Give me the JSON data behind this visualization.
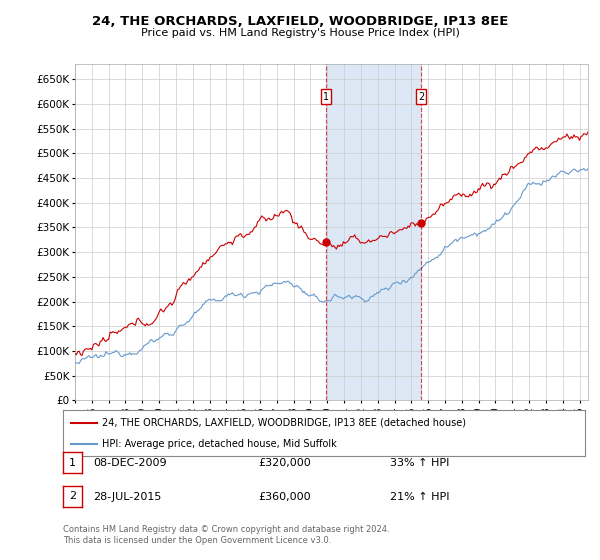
{
  "title": "24, THE ORCHARDS, LAXFIELD, WOODBRIDGE, IP13 8EE",
  "subtitle": "Price paid vs. HM Land Registry's House Price Index (HPI)",
  "ylabel_ticks": [
    "£0",
    "£50K",
    "£100K",
    "£150K",
    "£200K",
    "£250K",
    "£300K",
    "£350K",
    "£400K",
    "£450K",
    "£500K",
    "£550K",
    "£600K",
    "£650K"
  ],
  "ytick_vals": [
    0,
    50000,
    100000,
    150000,
    200000,
    250000,
    300000,
    350000,
    400000,
    450000,
    500000,
    550000,
    600000,
    650000
  ],
  "xlim_start": 1995.0,
  "xlim_end": 2025.5,
  "ylim_min": 0,
  "ylim_max": 680000,
  "red_line_color": "#cc0000",
  "blue_line_color": "#6699cc",
  "marker1_date": 2009.93,
  "marker2_date": 2015.57,
  "marker1_price": 320000,
  "marker2_price": 360000,
  "annotation1_label": "08-DEC-2009",
  "annotation1_price": "£320,000",
  "annotation1_pct": "33% ↑ HPI",
  "annotation2_label": "28-JUL-2015",
  "annotation2_price": "£360,000",
  "annotation2_pct": "21% ↑ HPI",
  "legend_red_label": "24, THE ORCHARDS, LAXFIELD, WOODBRIDGE, IP13 8EE (detached house)",
  "legend_blue_label": "HPI: Average price, detached house, Mid Suffolk",
  "footer": "Contains HM Land Registry data © Crown copyright and database right 2024.\nThis data is licensed under the Open Government Licence v3.0.",
  "background_color": "#ffffff",
  "plot_bg_color": "#ffffff",
  "grid_color": "#cccccc",
  "shaded_region_color": "#dce8f5"
}
